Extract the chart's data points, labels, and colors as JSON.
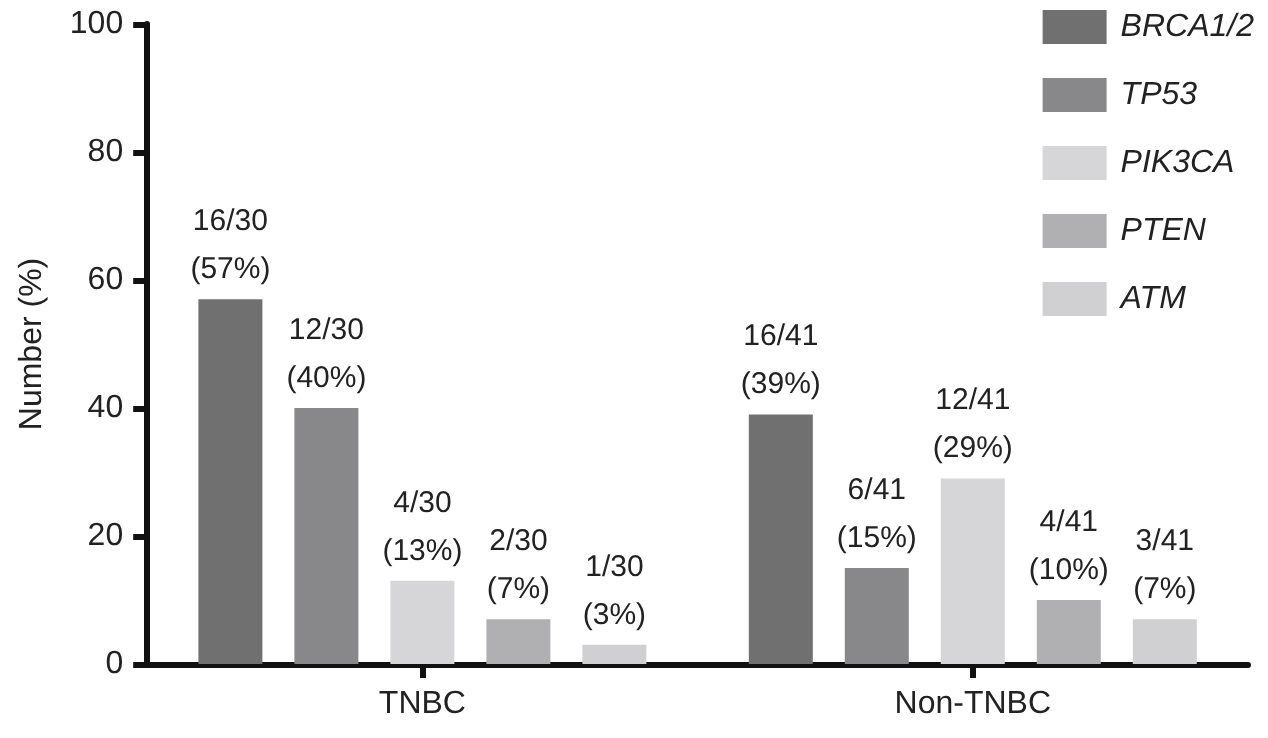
{
  "chart_data": {
    "type": "bar",
    "ylabel": "Number (%)",
    "categories": [
      "TNBC",
      "Non-TNBC"
    ],
    "series": [
      {
        "name": "BRCA1/2",
        "color": "#707070",
        "values": [
          57,
          39
        ],
        "value_labels": [
          "16/30\n(57%)",
          "16/41\n(39%)"
        ]
      },
      {
        "name": "TP53",
        "color": "#88888a",
        "values": [
          40,
          15
        ],
        "value_labels": [
          "12/30\n(40%)",
          "6/41\n(15%)"
        ]
      },
      {
        "name": "PIK3CA",
        "color": "#d6d6d8",
        "values": [
          13,
          29
        ],
        "value_labels": [
          "4/30\n(13%)",
          "12/41\n(29%)"
        ]
      },
      {
        "name": "PTEN",
        "color": "#b0b0b2",
        "values": [
          7,
          10
        ],
        "value_labels": [
          "2/30\n(7%)",
          "4/41\n(10%)"
        ]
      },
      {
        "name": "ATM",
        "color": "#d0d0d2",
        "values": [
          3,
          7
        ],
        "value_labels": [
          "1/30\n(3%)",
          "3/41\n(7%)"
        ]
      }
    ],
    "ylim": [
      0,
      100
    ],
    "yticks": [
      0,
      20,
      40,
      60,
      80,
      100
    ],
    "grid": false,
    "legend": "top right"
  }
}
